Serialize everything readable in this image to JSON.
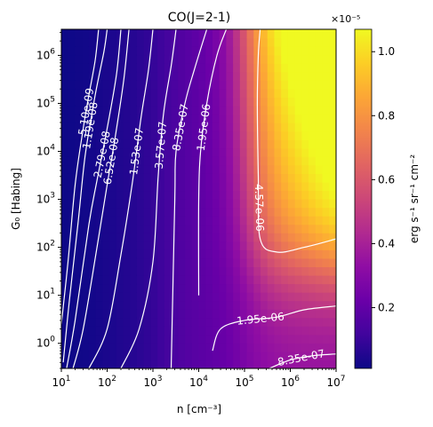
{
  "chart_data": {
    "type": "heatmap",
    "title": "CO(J=2-1)",
    "xlabel": "n [cm⁻³]",
    "ylabel": "G₀ [Habing]",
    "x_scale": "log",
    "y_scale": "log",
    "xlim": [
      10,
      10000000
    ],
    "ylim": [
      0.3,
      3500000
    ],
    "x_ticks": [
      {
        "value": 10,
        "base": "10",
        "exp": "1"
      },
      {
        "value": 100,
        "base": "10",
        "exp": "2"
      },
      {
        "value": 1000,
        "base": "10",
        "exp": "3"
      },
      {
        "value": 10000,
        "base": "10",
        "exp": "4"
      },
      {
        "value": 100000,
        "base": "10",
        "exp": "5"
      },
      {
        "value": 1000000,
        "base": "10",
        "exp": "6"
      },
      {
        "value": 10000000,
        "base": "10",
        "exp": "7"
      }
    ],
    "y_ticks": [
      {
        "value": 1,
        "base": "10",
        "exp": "0"
      },
      {
        "value": 10,
        "base": "10",
        "exp": "1"
      },
      {
        "value": 100,
        "base": "10",
        "exp": "2"
      },
      {
        "value": 1000,
        "base": "10",
        "exp": "3"
      },
      {
        "value": 10000,
        "base": "10",
        "exp": "4"
      },
      {
        "value": 100000,
        "base": "10",
        "exp": "5"
      },
      {
        "value": 1000000,
        "base": "10",
        "exp": "6"
      }
    ],
    "colormap": "plasma",
    "colorbar": {
      "label": "erg s⁻¹ sr⁻¹ cm⁻²",
      "multiplier": "×10⁻⁵",
      "vmin": 0.01,
      "vmax": 1.07,
      "ticks": [
        0.2,
        0.4,
        0.6,
        0.8,
        1.0
      ],
      "tick_labels": [
        "0.2",
        "0.4",
        "0.6",
        "0.8",
        "1.0"
      ]
    },
    "contour_color": "#ffffff",
    "contours": [
      {
        "label": "5.10e-09",
        "points": [
          [
            10,
            2.5
          ],
          [
            14,
            50
          ],
          [
            20,
            2000
          ],
          [
            30,
            30000
          ],
          [
            40,
            150000
          ],
          [
            55,
            800000
          ],
          [
            65,
            3500000
          ]
        ]
      },
      {
        "label": "1.19e-08",
        "points": [
          [
            11,
            0.4
          ],
          [
            15,
            8
          ],
          [
            23,
            300
          ],
          [
            33,
            8000
          ],
          [
            55,
            150000
          ],
          [
            85,
            1200000
          ],
          [
            100,
            3500000
          ]
        ]
      },
      {
        "label": "2.79e-08",
        "points": [
          [
            13,
            0.3
          ],
          [
            20,
            3
          ],
          [
            40,
            300
          ],
          [
            60,
            2500
          ],
          [
            100,
            30000
          ],
          [
            160,
            400000
          ],
          [
            200,
            3500000
          ]
        ]
      },
      {
        "label": "6.52e-08",
        "points": [
          [
            18,
            0.3
          ],
          [
            30,
            2
          ],
          [
            60,
            100
          ],
          [
            100,
            2000
          ],
          [
            150,
            20000
          ],
          [
            230,
            300000
          ],
          [
            300,
            3500000
          ]
        ]
      },
      {
        "label": "1.53e-07",
        "points": [
          [
            40,
            0.3
          ],
          [
            100,
            2
          ],
          [
            200,
            70
          ],
          [
            350,
            2000
          ],
          [
            550,
            50000
          ],
          [
            800,
            500000
          ],
          [
            1000,
            3500000
          ]
        ]
      },
      {
        "label": "3.57e-07",
        "points": [
          [
            200,
            0.3
          ],
          [
            500,
            2
          ],
          [
            1000,
            50
          ],
          [
            1300,
            3000
          ],
          [
            1700,
            60000
          ],
          [
            2500,
            600000
          ],
          [
            3200,
            3500000
          ]
        ]
      },
      {
        "label": "8.35e-07",
        "points": [
          [
            2500,
            0.3
          ],
          [
            3000,
            1000
          ],
          [
            3200,
            10000
          ],
          [
            5000,
            100000
          ],
          [
            8000,
            500000
          ],
          [
            15000,
            3500000
          ]
        ]
      },
      {
        "label": "1.95e-06",
        "points": [
          [
            10000,
            10
          ],
          [
            10000,
            1000
          ],
          [
            11000,
            10000
          ],
          [
            15000,
            100000
          ],
          [
            25000,
            1000000
          ],
          [
            40000,
            3500000
          ]
        ]
      },
      {
        "label": "4.57e-06",
        "points": [
          [
            10000000,
            150
          ],
          [
            2000000,
            100
          ],
          [
            500000,
            80
          ],
          [
            220000,
            150
          ],
          [
            200000,
            3000
          ],
          [
            190000,
            100000
          ],
          [
            200000,
            1000000
          ],
          [
            220000,
            3500000
          ]
        ]
      },
      {
        "label": "1.95e-06",
        "points": [
          [
            20000,
            0.7
          ],
          [
            30000,
            2
          ],
          [
            100000,
            3
          ],
          [
            500000,
            3.5
          ],
          [
            2000000,
            5
          ],
          [
            10000000,
            6
          ]
        ]
      },
      {
        "label": "8.35e-07",
        "points": [
          [
            350000,
            0.3
          ],
          [
            1000000,
            0.45
          ],
          [
            3000000,
            0.55
          ],
          [
            10000000,
            0.6
          ]
        ]
      }
    ]
  }
}
